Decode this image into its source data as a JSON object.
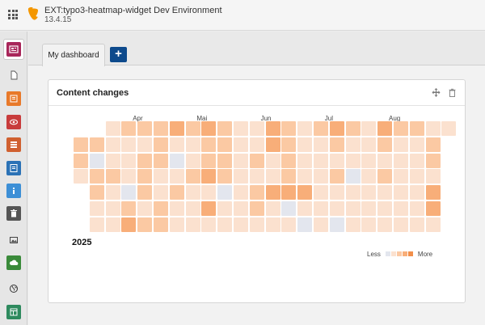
{
  "topbar": {
    "site_name": "EXT:typo3-heatmap-widget Dev Environment",
    "version": "13.4.15",
    "apps_icon": "grid-icon",
    "logo_icon": "typo3-logo-icon"
  },
  "modules": [
    {
      "name": "dashboard",
      "icon": "dashboard-icon",
      "color": "#a8265a"
    },
    {
      "name": "page",
      "icon": "page-icon",
      "color": "transparent"
    },
    {
      "name": "list",
      "icon": "list-icon",
      "color": "#e8792a"
    },
    {
      "name": "view",
      "icon": "eye-icon",
      "color": "#c83c3c"
    },
    {
      "name": "forms",
      "icon": "forms-icon",
      "color": "#d06030"
    },
    {
      "name": "info",
      "icon": "info-icon",
      "color": "#2b72b6"
    },
    {
      "name": "info2",
      "icon": "info-circle-icon",
      "color": "#3d8fd6"
    },
    {
      "name": "recycler",
      "icon": "trash-icon",
      "color": "#555555"
    },
    {
      "name": "filelist",
      "icon": "image-icon",
      "color": "transparent"
    },
    {
      "name": "scheduler",
      "icon": "cloud-icon",
      "color": "#3a8a3a"
    },
    {
      "name": "sites",
      "icon": "globe-icon",
      "color": "transparent"
    },
    {
      "name": "template",
      "icon": "layout-icon",
      "color": "#2e8a5e"
    }
  ],
  "tabs": {
    "active_label": "My dashboard",
    "add_label": "+"
  },
  "widget": {
    "title": "Content changes",
    "move_icon": "move-icon",
    "delete_icon": "trash-icon",
    "year": "2025",
    "legend_less": "Less",
    "legend_more": "More",
    "colors": [
      "#e3e6ee",
      "#fbe1cf",
      "#fbc9a3",
      "#f8ae79",
      "#f28f4a"
    ]
  },
  "chart_data": {
    "type": "heatmap",
    "title": "Content changes",
    "x_month_labels": [
      "Apr",
      "Mai",
      "Jun",
      "Jul",
      "Aug"
    ],
    "x_month_start_week": [
      4,
      8,
      12,
      16,
      20
    ],
    "weeks": 24,
    "days": 7,
    "levels": [
      [
        -1,
        2,
        2,
        1,
        -1,
        -1,
        -1
      ],
      [
        -1,
        2,
        0,
        2,
        2,
        1,
        1
      ],
      [
        1,
        1,
        1,
        2,
        1,
        1,
        1
      ],
      [
        2,
        1,
        1,
        1,
        0,
        2,
        3
      ],
      [
        2,
        1,
        2,
        2,
        2,
        1,
        2
      ],
      [
        2,
        2,
        2,
        1,
        1,
        2,
        2
      ],
      [
        3,
        1,
        0,
        1,
        2,
        1,
        1
      ],
      [
        2,
        1,
        1,
        2,
        1,
        1,
        1
      ],
      [
        3,
        2,
        2,
        3,
        1,
        3,
        1
      ],
      [
        2,
        2,
        2,
        2,
        0,
        1,
        1
      ],
      [
        1,
        1,
        1,
        1,
        1,
        1,
        1
      ],
      [
        1,
        1,
        2,
        1,
        2,
        2,
        1
      ],
      [
        3,
        3,
        1,
        1,
        3,
        1,
        1
      ],
      [
        2,
        2,
        2,
        2,
        3,
        0,
        1
      ],
      [
        1,
        1,
        1,
        1,
        3,
        1,
        0
      ],
      [
        2,
        1,
        1,
        1,
        1,
        1,
        1
      ],
      [
        3,
        2,
        1,
        2,
        1,
        1,
        0
      ],
      [
        2,
        1,
        1,
        0,
        1,
        1,
        1
      ],
      [
        1,
        1,
        1,
        1,
        1,
        1,
        1
      ],
      [
        3,
        2,
        1,
        2,
        1,
        1,
        1
      ],
      [
        2,
        1,
        1,
        1,
        1,
        1,
        1
      ],
      [
        2,
        1,
        1,
        1,
        1,
        1,
        1
      ],
      [
        1,
        2,
        2,
        1,
        3,
        3,
        1
      ],
      [
        1,
        -1,
        -1,
        -1,
        -1,
        -1,
        -1
      ]
    ]
  }
}
